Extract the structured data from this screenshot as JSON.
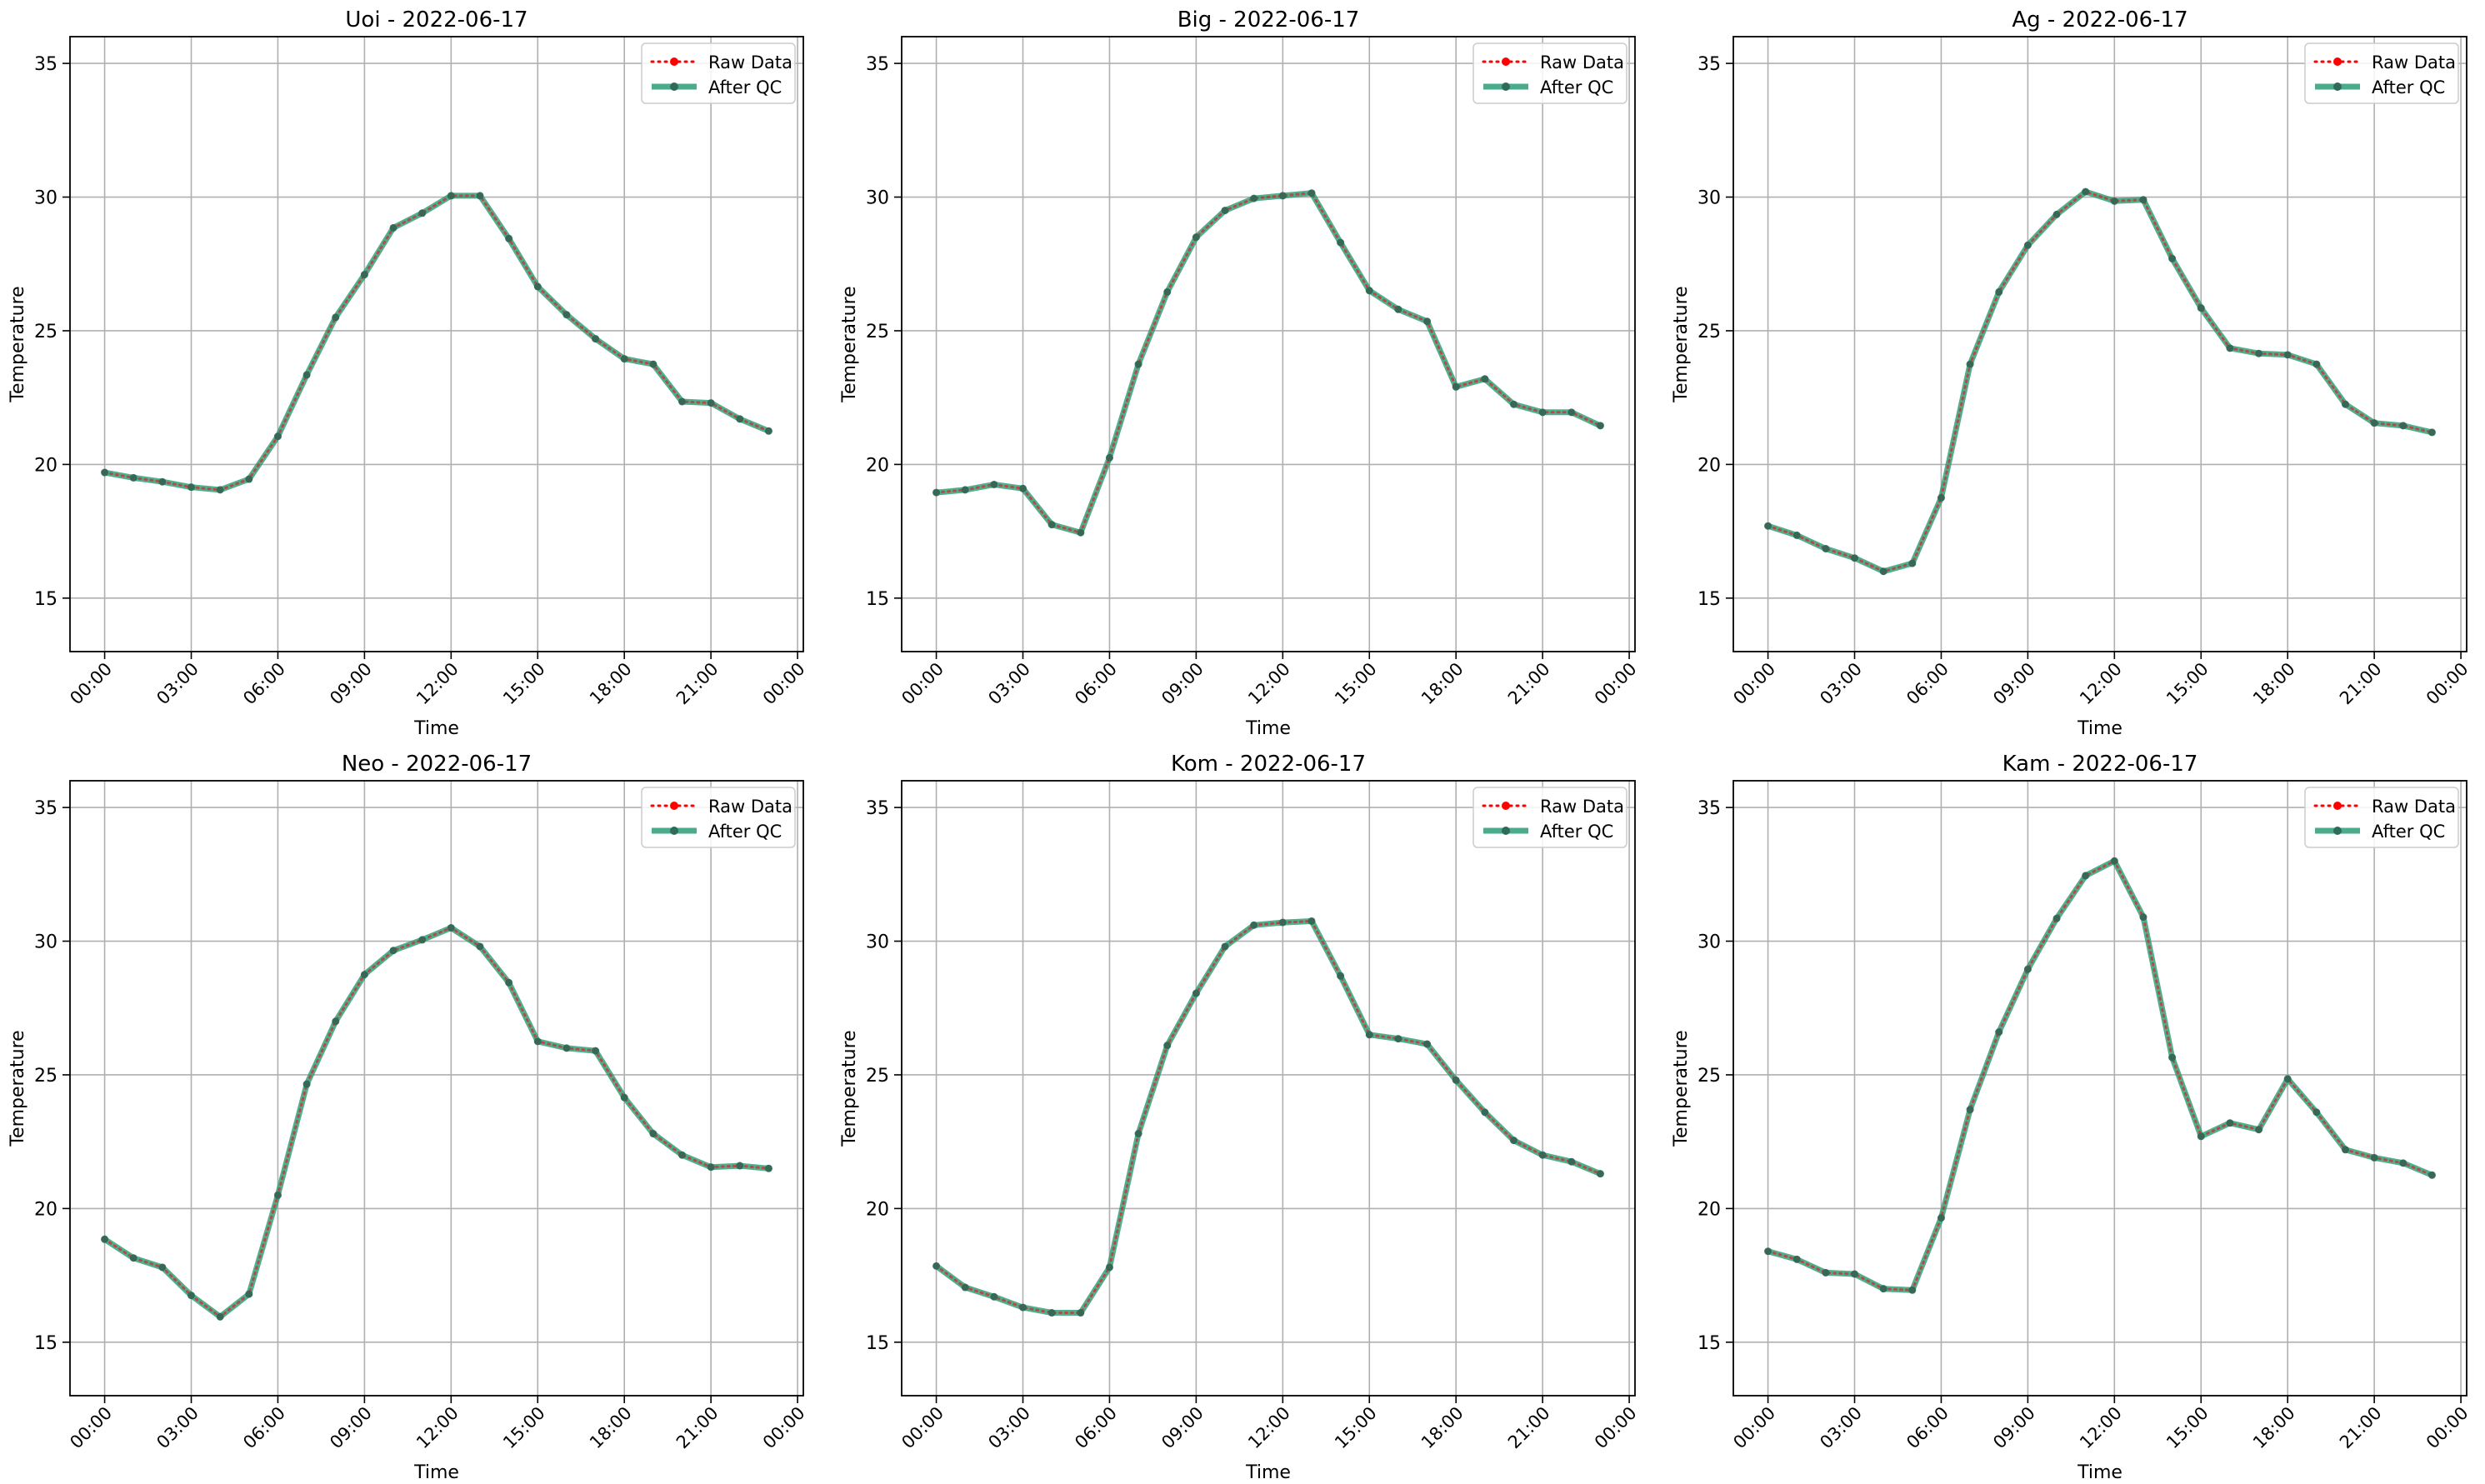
{
  "figure": {
    "background": "#ffffff"
  },
  "style": {
    "raw_color": "#ff0000",
    "qc_color": "#2a9d78",
    "qc_marker_color": "#2e6b5a",
    "grid_color": "#b0b0b0"
  },
  "chart_data": [
    {
      "type": "line",
      "title": "Uoi - 2022-06-17",
      "xlabel": "Time",
      "ylabel": "Temperature",
      "ylim": [
        13,
        36
      ],
      "xlim": [
        -1.2,
        24.2
      ],
      "yticks": [
        15,
        20,
        25,
        30,
        35
      ],
      "xticks": [
        0,
        3,
        6,
        9,
        12,
        15,
        18,
        21,
        24
      ],
      "xtick_labels": [
        "00:00",
        "03:00",
        "06:00",
        "09:00",
        "12:00",
        "15:00",
        "18:00",
        "21:00",
        "00:00"
      ],
      "grid": true,
      "legend_position": "top-right",
      "x": [
        0,
        1,
        2,
        3,
        4,
        5,
        6,
        7,
        8,
        9,
        10,
        11,
        12,
        13,
        14,
        15,
        16,
        17,
        18,
        19,
        20,
        21,
        22,
        23
      ],
      "series": [
        {
          "name": "Raw Data",
          "values": [
            19.7,
            19.5,
            19.35,
            19.15,
            19.05,
            19.45,
            21.05,
            23.35,
            25.5,
            27.1,
            28.85,
            29.4,
            30.05,
            30.05,
            28.45,
            26.65,
            25.6,
            24.7,
            23.95,
            23.75,
            22.35,
            22.3,
            21.7,
            21.25
          ]
        },
        {
          "name": "After QC",
          "values": [
            19.7,
            19.5,
            19.35,
            19.15,
            19.05,
            19.45,
            21.05,
            23.35,
            25.5,
            27.1,
            28.85,
            29.4,
            30.05,
            30.05,
            28.45,
            26.65,
            25.6,
            24.7,
            23.95,
            23.75,
            22.35,
            22.3,
            21.7,
            21.25
          ]
        }
      ]
    },
    {
      "type": "line",
      "title": "Big - 2022-06-17",
      "xlabel": "Time",
      "ylabel": "Temperature",
      "ylim": [
        13,
        36
      ],
      "xlim": [
        -1.2,
        24.2
      ],
      "yticks": [
        15,
        20,
        25,
        30,
        35
      ],
      "xticks": [
        0,
        3,
        6,
        9,
        12,
        15,
        18,
        21,
        24
      ],
      "xtick_labels": [
        "00:00",
        "03:00",
        "06:00",
        "09:00",
        "12:00",
        "15:00",
        "18:00",
        "21:00",
        "00:00"
      ],
      "grid": true,
      "legend_position": "top-right",
      "x": [
        0,
        1,
        2,
        3,
        4,
        5,
        6,
        7,
        8,
        9,
        10,
        11,
        12,
        13,
        14,
        15,
        16,
        17,
        18,
        19,
        20,
        21,
        22,
        23
      ],
      "series": [
        {
          "name": "Raw Data",
          "values": [
            18.95,
            19.05,
            19.25,
            19.1,
            17.75,
            17.45,
            20.25,
            23.75,
            26.45,
            28.5,
            29.5,
            29.95,
            30.05,
            30.15,
            28.3,
            26.5,
            25.8,
            25.35,
            22.9,
            23.2,
            22.25,
            21.95,
            21.95,
            21.45
          ]
        },
        {
          "name": "After QC",
          "values": [
            18.95,
            19.05,
            19.25,
            19.1,
            17.75,
            17.45,
            20.25,
            23.75,
            26.45,
            28.5,
            29.5,
            29.95,
            30.05,
            30.15,
            28.3,
            26.5,
            25.8,
            25.35,
            22.9,
            23.2,
            22.25,
            21.95,
            21.95,
            21.45
          ]
        }
      ]
    },
    {
      "type": "line",
      "title": "Ag - 2022-06-17",
      "xlabel": "Time",
      "ylabel": "Temperature",
      "ylim": [
        13,
        36
      ],
      "xlim": [
        -1.2,
        24.2
      ],
      "yticks": [
        15,
        20,
        25,
        30,
        35
      ],
      "xticks": [
        0,
        3,
        6,
        9,
        12,
        15,
        18,
        21,
        24
      ],
      "xtick_labels": [
        "00:00",
        "03:00",
        "06:00",
        "09:00",
        "12:00",
        "15:00",
        "18:00",
        "21:00",
        "00:00"
      ],
      "grid": true,
      "legend_position": "top-right",
      "x": [
        0,
        1,
        2,
        3,
        4,
        5,
        6,
        7,
        8,
        9,
        10,
        11,
        12,
        13,
        14,
        15,
        16,
        17,
        18,
        19,
        20,
        21,
        22,
        23
      ],
      "series": [
        {
          "name": "Raw Data",
          "values": [
            17.7,
            17.35,
            16.85,
            16.5,
            16.0,
            16.3,
            18.75,
            23.75,
            26.45,
            28.2,
            29.35,
            30.2,
            29.85,
            29.9,
            27.7,
            25.85,
            24.35,
            24.15,
            24.1,
            23.75,
            22.25,
            21.55,
            21.45,
            21.2
          ]
        },
        {
          "name": "After QC",
          "values": [
            17.7,
            17.35,
            16.85,
            16.5,
            16.0,
            16.3,
            18.75,
            23.75,
            26.45,
            28.2,
            29.35,
            30.2,
            29.85,
            29.9,
            27.7,
            25.85,
            24.35,
            24.15,
            24.1,
            23.75,
            22.25,
            21.55,
            21.45,
            21.2
          ]
        }
      ]
    },
    {
      "type": "line",
      "title": "Neo - 2022-06-17",
      "xlabel": "Time",
      "ylabel": "Temperature",
      "ylim": [
        13,
        36
      ],
      "xlim": [
        -1.2,
        24.2
      ],
      "yticks": [
        15,
        20,
        25,
        30,
        35
      ],
      "xticks": [
        0,
        3,
        6,
        9,
        12,
        15,
        18,
        21,
        24
      ],
      "xtick_labels": [
        "00:00",
        "03:00",
        "06:00",
        "09:00",
        "12:00",
        "15:00",
        "18:00",
        "21:00",
        "00:00"
      ],
      "grid": true,
      "legend_position": "top-right",
      "x": [
        0,
        1,
        2,
        3,
        4,
        5,
        6,
        7,
        8,
        9,
        10,
        11,
        12,
        13,
        14,
        15,
        16,
        17,
        18,
        19,
        20,
        21,
        22,
        23
      ],
      "series": [
        {
          "name": "Raw Data",
          "values": [
            18.85,
            18.15,
            17.8,
            16.75,
            15.95,
            16.8,
            20.5,
            24.65,
            27.0,
            28.75,
            29.65,
            30.05,
            30.5,
            29.8,
            28.45,
            26.25,
            26.0,
            25.9,
            24.15,
            22.8,
            22.0,
            21.55,
            21.6,
            21.5
          ]
        },
        {
          "name": "After QC",
          "values": [
            18.85,
            18.15,
            17.8,
            16.75,
            15.95,
            16.8,
            20.5,
            24.65,
            27.0,
            28.75,
            29.65,
            30.05,
            30.5,
            29.8,
            28.45,
            26.25,
            26.0,
            25.9,
            24.15,
            22.8,
            22.0,
            21.55,
            21.6,
            21.5
          ]
        }
      ]
    },
    {
      "type": "line",
      "title": "Kom - 2022-06-17",
      "xlabel": "Time",
      "ylabel": "Temperature",
      "ylim": [
        13,
        36
      ],
      "xlim": [
        -1.2,
        24.2
      ],
      "yticks": [
        15,
        20,
        25,
        30,
        35
      ],
      "xticks": [
        0,
        3,
        6,
        9,
        12,
        15,
        18,
        21,
        24
      ],
      "xtick_labels": [
        "00:00",
        "03:00",
        "06:00",
        "09:00",
        "12:00",
        "15:00",
        "18:00",
        "21:00",
        "00:00"
      ],
      "grid": true,
      "legend_position": "top-right",
      "x": [
        0,
        1,
        2,
        3,
        4,
        5,
        6,
        7,
        8,
        9,
        10,
        11,
        12,
        13,
        14,
        15,
        16,
        17,
        18,
        19,
        20,
        21,
        22,
        23
      ],
      "series": [
        {
          "name": "Raw Data",
          "values": [
            17.85,
            17.05,
            16.7,
            16.3,
            16.1,
            16.1,
            17.8,
            22.8,
            26.1,
            28.05,
            29.8,
            30.6,
            30.7,
            30.75,
            28.7,
            26.5,
            26.35,
            26.15,
            24.8,
            23.6,
            22.55,
            22.0,
            21.75,
            21.3
          ]
        },
        {
          "name": "After QC",
          "values": [
            17.85,
            17.05,
            16.7,
            16.3,
            16.1,
            16.1,
            17.8,
            22.8,
            26.1,
            28.05,
            29.8,
            30.6,
            30.7,
            30.75,
            28.7,
            26.5,
            26.35,
            26.15,
            24.8,
            23.6,
            22.55,
            22.0,
            21.75,
            21.3
          ]
        }
      ]
    },
    {
      "type": "line",
      "title": "Kam - 2022-06-17",
      "xlabel": "Time",
      "ylabel": "Temperature",
      "ylim": [
        13,
        36
      ],
      "xlim": [
        -1.2,
        24.2
      ],
      "yticks": [
        15,
        20,
        25,
        30,
        35
      ],
      "xticks": [
        0,
        3,
        6,
        9,
        12,
        15,
        18,
        21,
        24
      ],
      "xtick_labels": [
        "00:00",
        "03:00",
        "06:00",
        "09:00",
        "12:00",
        "15:00",
        "18:00",
        "21:00",
        "00:00"
      ],
      "grid": true,
      "legend_position": "top-right",
      "x": [
        0,
        1,
        2,
        3,
        4,
        5,
        6,
        7,
        8,
        9,
        10,
        11,
        12,
        13,
        14,
        15,
        16,
        17,
        18,
        19,
        20,
        21,
        22,
        23
      ],
      "series": [
        {
          "name": "Raw Data",
          "values": [
            18.4,
            18.1,
            17.6,
            17.55,
            17.0,
            16.95,
            19.65,
            23.7,
            26.6,
            28.95,
            30.85,
            32.45,
            33.0,
            30.9,
            25.65,
            22.7,
            23.2,
            22.95,
            24.85,
            23.6,
            22.2,
            21.9,
            21.7,
            21.25
          ]
        },
        {
          "name": "After QC",
          "values": [
            18.4,
            18.1,
            17.6,
            17.55,
            17.0,
            16.95,
            19.65,
            23.7,
            26.6,
            28.95,
            30.85,
            32.45,
            33.0,
            30.9,
            25.65,
            22.7,
            23.2,
            22.95,
            24.85,
            23.6,
            22.2,
            21.9,
            21.7,
            21.25
          ]
        }
      ]
    }
  ]
}
